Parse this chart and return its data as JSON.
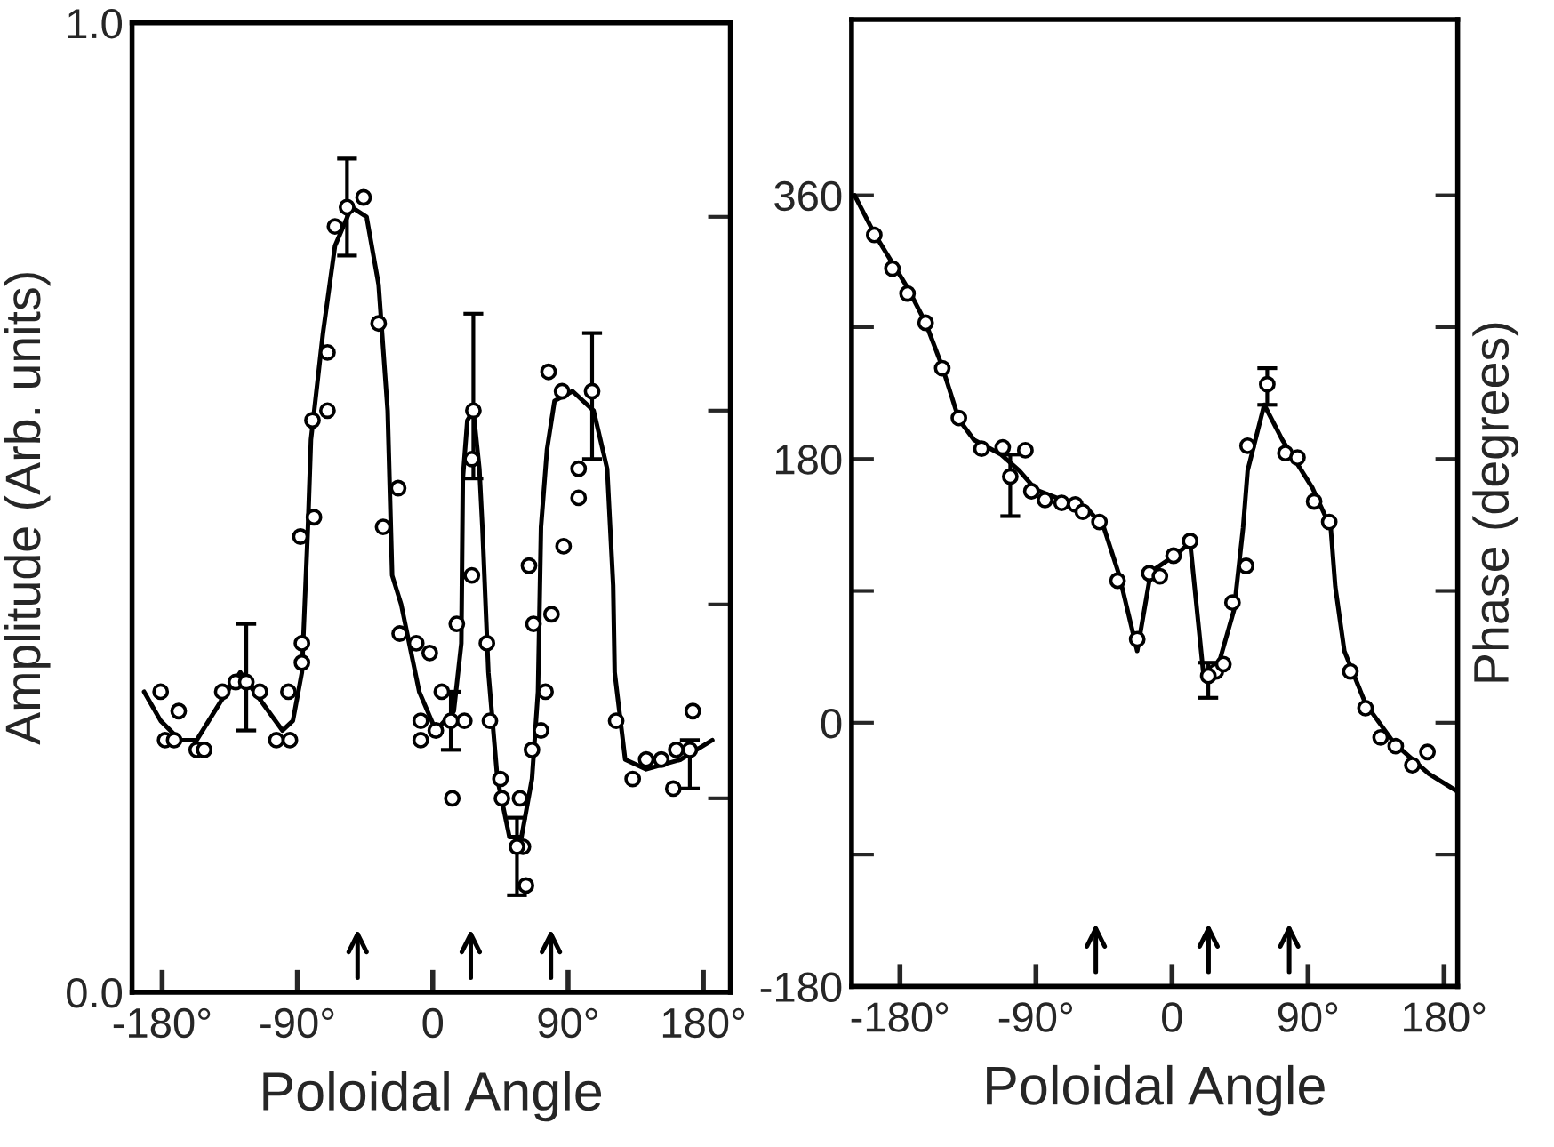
{
  "chart_data": [
    {
      "type": "scatter",
      "xlabel": "Poloidal Angle",
      "ylabel": "Amplitude (Arb. units)",
      "xlim": [
        -200,
        198
      ],
      "ylim": [
        0,
        1
      ],
      "xticks": [
        {
          "value": -180,
          "label": "-180°"
        },
        {
          "value": -90,
          "label": "-90°"
        },
        {
          "value": 0,
          "label": "0"
        },
        {
          "value": 90,
          "label": "90°"
        },
        {
          "value": 180,
          "label": "180°"
        }
      ],
      "yticks": [
        {
          "value": 0,
          "label": "0.0"
        },
        {
          "value": 0.2,
          "label": null
        },
        {
          "value": 0.4,
          "label": null
        },
        {
          "value": 0.6,
          "label": null
        },
        {
          "value": 0.8,
          "label": null
        },
        {
          "value": 1.0,
          "label": "1.0"
        }
      ],
      "grid": false,
      "series": [
        {
          "type": "line",
          "color": "#000000",
          "marker": "none",
          "line_style": "solid",
          "x": [
            -192,
            -181,
            -168,
            -157,
            -141,
            -128,
            -114,
            -100,
            -93,
            -87,
            -83,
            -81,
            -73,
            -65,
            -54,
            -44,
            -36,
            -30,
            -27,
            -21,
            -9,
            2,
            14,
            19,
            20,
            23,
            27,
            31,
            33,
            37,
            43,
            51,
            59,
            66,
            70,
            72,
            76,
            81,
            93,
            107,
            116,
            120,
            121,
            128,
            142,
            165,
            186
          ],
          "values": [
            0.31,
            0.28,
            0.26,
            0.26,
            0.3,
            0.33,
            0.3,
            0.27,
            0.28,
            0.33,
            0.48,
            0.57,
            0.68,
            0.77,
            0.81,
            0.8,
            0.73,
            0.6,
            0.43,
            0.4,
            0.31,
            0.27,
            0.29,
            0.36,
            0.53,
            0.59,
            0.6,
            0.54,
            0.48,
            0.33,
            0.22,
            0.16,
            0.16,
            0.22,
            0.31,
            0.48,
            0.56,
            0.61,
            0.62,
            0.6,
            0.54,
            0.42,
            0.33,
            0.24,
            0.23,
            0.24,
            0.26
          ]
        },
        {
          "color": "#000000",
          "marker": "circle",
          "x": [
            -46,
            -65,
            -36,
            -70,
            -70,
            -80,
            -23,
            -33,
            -79,
            -88,
            26,
            77,
            86,
            97,
            97,
            87,
            64,
            26,
            -181,
            -169,
            -178,
            -172,
            -157,
            -152,
            -140,
            -131,
            -115,
            -104,
            -95,
            -96,
            -87,
            -87,
            -22,
            -11,
            -2,
            6,
            -8,
            -8,
            2,
            13,
            16,
            21,
            36,
            38,
            45,
            46,
            58,
            60,
            62,
            67,
            79,
            75,
            72,
            66,
            122,
            133,
            142,
            152,
            162,
            160,
            173
          ],
          "values": [
            0.82,
            0.79,
            0.69,
            0.66,
            0.6,
            0.59,
            0.52,
            0.48,
            0.49,
            0.47,
            0.55,
            0.64,
            0.62,
            0.54,
            0.51,
            0.46,
            0.44,
            0.43,
            0.31,
            0.29,
            0.26,
            0.26,
            0.25,
            0.25,
            0.31,
            0.32,
            0.31,
            0.26,
            0.26,
            0.31,
            0.34,
            0.36,
            0.37,
            0.36,
            0.35,
            0.31,
            0.28,
            0.26,
            0.27,
            0.2,
            0.38,
            0.28,
            0.36,
            0.28,
            0.22,
            0.2,
            0.2,
            0.15,
            0.11,
            0.38,
            0.39,
            0.31,
            0.27,
            0.25,
            0.28,
            0.22,
            0.24,
            0.24,
            0.25,
            0.21,
            0.29
          ]
        },
        {
          "color": "#000000",
          "marker": "circle",
          "x": [
            -57,
            27,
            106,
            -124,
            12,
            56,
            171
          ],
          "values": [
            0.81,
            0.6,
            0.62,
            0.32,
            0.28,
            0.15,
            0.25
          ],
          "errors": [
            [
              0.76,
              0.86
            ],
            [
              0.53,
              0.7
            ],
            [
              0.55,
              0.68
            ],
            [
              0.27,
              0.38
            ],
            [
              0.25,
              0.31
            ],
            [
              0.1,
              0.18
            ],
            [
              0.21,
              0.26
            ]
          ]
        }
      ]
    },
    {
      "type": "scatter",
      "xlabel": "Poloidal Angle",
      "ylabel": "Phase (degrees)",
      "xlim": [
        -212,
        189
      ],
      "ylim": [
        -180,
        480
      ],
      "xticks": [
        {
          "value": -180,
          "label": "-180°"
        },
        {
          "value": -90,
          "label": "-90°"
        },
        {
          "value": 0,
          "label": "0"
        },
        {
          "value": 90,
          "label": "90°"
        },
        {
          "value": 180,
          "label": "180°"
        }
      ],
      "yticks": [
        -180,
        {
          "value": -90,
          "label": null
        },
        0,
        {
          "value": 90,
          "label": null
        },
        180,
        {
          "value": 270,
          "label": null
        },
        360
      ],
      "grid": false,
      "series": [
        {
          "type": "line",
          "color": "#000000",
          "marker": "none",
          "line_style": "solid",
          "x": [
            -210,
            -197,
            -175,
            -163,
            -152,
            -141,
            -131,
            -113,
            -101,
            -90,
            -70,
            -55,
            -45,
            -35,
            -23,
            -14,
            3,
            12,
            21,
            30,
            41,
            47,
            50,
            61,
            73,
            93,
            105,
            108,
            114,
            128,
            147,
            170,
            189
          ],
          "values": [
            360,
            334,
            297,
            273,
            243,
            207,
            193,
            183,
            172,
            159,
            151,
            145,
            133,
            101,
            49,
            103,
            115,
            123,
            31,
            37,
            77,
            133,
            172,
            217,
            193,
            160,
            133,
            93,
            49,
            13,
            -14,
            -35,
            -47
          ]
        },
        {
          "color": "#000000",
          "marker": "circle",
          "x": [
            -197,
            -185,
            -175,
            -163,
            -152,
            -141,
            -126,
            -112,
            -97,
            -93,
            -84,
            -73,
            -64,
            -59,
            -48,
            -36,
            -23,
            -15,
            -8,
            1,
            12,
            29,
            34,
            40,
            49,
            50,
            75,
            83,
            94,
            104,
            118,
            128,
            138,
            148,
            159,
            169
          ],
          "values": [
            333,
            310,
            293,
            273,
            242,
            208,
            187,
            188,
            186,
            158,
            152,
            150,
            149,
            144,
            137,
            97,
            57,
            102,
            100,
            114,
            124,
            35,
            40,
            82,
            107,
            189,
            184,
            181,
            151,
            137,
            35,
            10,
            -10,
            -16,
            -29,
            -20
          ]
        },
        {
          "color": "#000000",
          "marker": "circle",
          "x": [
            -107,
            63,
            24
          ],
          "values": [
            168,
            231,
            32
          ],
          "errors": [
            [
              141,
              183
            ],
            [
              217,
              242
            ],
            [
              17,
              41
            ]
          ]
        }
      ]
    }
  ]
}
